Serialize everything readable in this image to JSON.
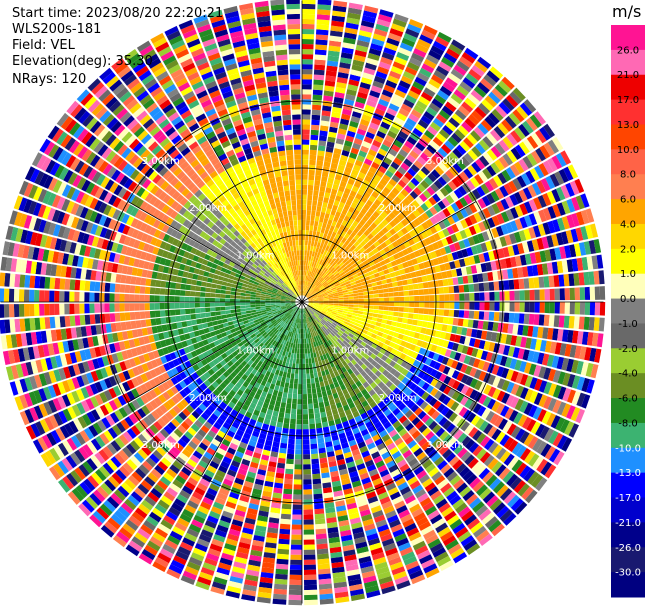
{
  "header": {
    "start_time": "Start time: 2023/08/20 22:20:21",
    "instrument": "WLS200s-181",
    "field": "Field: VEL",
    "elevation": "Elevation(deg): 35.30",
    "nrays": "NRays: 120"
  },
  "chart_data": {
    "type": "heatmap",
    "projection": "polar-ppi",
    "field": "VEL",
    "n_rays": 120,
    "range_rings_km": [
      1.0,
      2.0,
      3.0
    ],
    "ring_label_text": [
      "1.00km",
      "2.00km",
      "3.00km"
    ],
    "max_range_km": 4.5,
    "valid_range_km": 2.2,
    "spokes_deg": [
      0,
      30,
      60,
      90,
      120,
      150,
      180,
      210,
      240,
      270,
      300,
      330
    ],
    "colorbar": {
      "unit": "m/s",
      "ticks": [
        "26.0",
        "21.0",
        "17.0",
        "13.0",
        "10.0",
        "8.0",
        "6.0",
        "4.0",
        "2.0",
        "1.0",
        "0.0",
        "-1.0",
        "-2.0",
        "-4.0",
        "-6.0",
        "-8.0",
        "-10.0",
        "-13.0",
        "-17.0",
        "-21.0",
        "-26.0",
        "-30.0"
      ],
      "colors": [
        "#ff1493",
        "#ff69b4",
        "#ee0000",
        "#ff3030",
        "#ff4500",
        "#ff6347",
        "#ff7f50",
        "#ffa500",
        "#ffd700",
        "#ffff00",
        "#ffffbb",
        "#808080",
        "#696969",
        "#9acd32",
        "#6b8e23",
        "#228b22",
        "#3cb371",
        "#1e90ff",
        "#0000ff",
        "#0000cd",
        "#00008b",
        "#191970",
        "#000080"
      ]
    }
  }
}
